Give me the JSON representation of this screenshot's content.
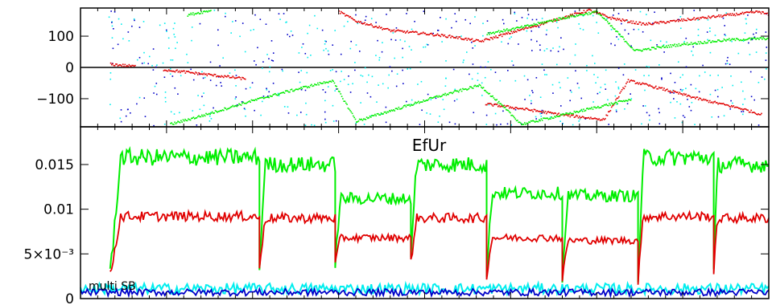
{
  "figure": {
    "bottom_plot_title": "EfUr",
    "annotation": "multi SB"
  },
  "colors": {
    "axes": "#000000",
    "red": "#e00000",
    "green": "#00ee00",
    "blue": "#0000c8",
    "cyan": "#00eeee"
  },
  "chart_data": [
    {
      "type": "scatter",
      "title": "",
      "xlabel": "",
      "ylabel": "",
      "ylim": [
        -190,
        190
      ],
      "yticks": [
        100,
        0,
        -100
      ],
      "ytick_labels": [
        "100",
        "0",
        "−100"
      ],
      "xlim": [
        0,
        1000
      ],
      "grid": false,
      "series": [
        {
          "color": "red",
          "description_points": [
            [
              375,
              180
            ],
            [
              400,
              150
            ],
            [
              450,
              120
            ],
            [
              500,
              110
            ],
            [
              540,
              100
            ],
            [
              580,
              85
            ],
            [
              738,
              185
            ],
            [
              770,
              160
            ],
            [
              805,
              145
            ],
            [
              820,
              140
            ],
            [
              985,
              180
            ],
            [
              1000,
              170
            ],
            [
              43,
              12
            ],
            [
              80,
              5
            ],
            [
              120,
              -5
            ],
            [
              180,
              -20
            ],
            [
              240,
              -35
            ],
            [
              588,
              -115
            ],
            [
              640,
              -130
            ],
            [
              700,
              -150
            ],
            [
              760,
              -165
            ],
            [
              795,
              -40
            ],
            [
              850,
              -70
            ],
            [
              900,
              -100
            ],
            [
              960,
              -130
            ],
            [
              990,
              -150
            ]
          ]
        },
        {
          "color": "green",
          "description_points": [
            [
              155,
              170
            ],
            [
              190,
              185
            ],
            [
              590,
              110
            ],
            [
              640,
              130
            ],
            [
              700,
              160
            ],
            [
              750,
              180
            ],
            [
              805,
              55
            ],
            [
              870,
              75
            ],
            [
              940,
              90
            ],
            [
              1000,
              95
            ],
            [
              130,
              -180
            ],
            [
              180,
              -150
            ],
            [
              240,
              -110
            ],
            [
              300,
              -75
            ],
            [
              365,
              -40
            ],
            [
              400,
              -170
            ],
            [
              460,
              -130
            ],
            [
              520,
              -90
            ],
            [
              580,
              -55
            ],
            [
              640,
              -180
            ],
            [
              700,
              -150
            ],
            [
              760,
              -120
            ],
            [
              800,
              -100
            ]
          ]
        }
      ]
    },
    {
      "type": "line",
      "title": "EfUr",
      "xlabel": "",
      "ylabel": "",
      "ylim": [
        0,
        0.0185
      ],
      "yticks": [
        0,
        0.005,
        0.01,
        0.015
      ],
      "ytick_labels": [
        "0",
        "5×10⁻³",
        "0.01",
        "0.015"
      ],
      "xlim": [
        0,
        1000
      ],
      "grid": false,
      "segments": [
        {
          "start": 43,
          "end": 260,
          "min": 0.0025,
          "green": 0.0158,
          "red": 0.0092
        },
        {
          "start": 260,
          "end": 370,
          "min": 0.003,
          "green": 0.015,
          "red": 0.009
        },
        {
          "start": 370,
          "end": 480,
          "min": 0.004,
          "green": 0.0112,
          "red": 0.0068
        },
        {
          "start": 480,
          "end": 590,
          "min": 0.004,
          "green": 0.015,
          "red": 0.009
        },
        {
          "start": 590,
          "end": 700,
          "min": 0.0025,
          "green": 0.0118,
          "red": 0.0068
        },
        {
          "start": 700,
          "end": 810,
          "min": 0.002,
          "green": 0.0115,
          "red": 0.0065
        },
        {
          "start": 810,
          "end": 920,
          "min": 0.002,
          "green": 0.0158,
          "red": 0.0092
        },
        {
          "start": 920,
          "end": 1000,
          "min": 0.003,
          "green": 0.015,
          "red": 0.009
        }
      ],
      "series": [
        {
          "color": "green",
          "level": "high"
        },
        {
          "color": "red",
          "level": "mid"
        },
        {
          "color": "cyan",
          "level": 0.0011
        },
        {
          "color": "blue",
          "level": 0.0007
        }
      ]
    }
  ]
}
